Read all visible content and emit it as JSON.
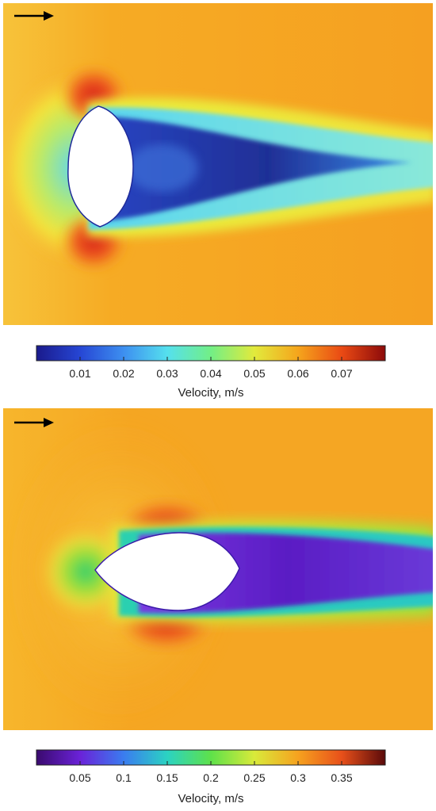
{
  "panels": [
    {
      "id": "low-speed",
      "colorbar": {
        "label": "Velocity, m/s",
        "min": 0.0,
        "max": 0.08,
        "ticks": [
          "0.01",
          "0.02",
          "0.03",
          "0.04",
          "0.05",
          "0.06",
          "0.07"
        ],
        "tick_values": [
          0.01,
          0.02,
          0.03,
          0.04,
          0.05,
          0.06,
          0.07
        ],
        "colormap": [
          "#1a1a8c",
          "#2646d4",
          "#3d8ff0",
          "#55e0ee",
          "#72ef86",
          "#e2ea3c",
          "#f5a51c",
          "#ea4a14",
          "#8c0a0a"
        ]
      },
      "field_colors": {
        "background": "#f5a021",
        "wake": "#2d3ea8",
        "wake_edge": "#63d9ee",
        "shear": "#f2e83a",
        "stagnation": "#d8261a"
      },
      "flow_arrow": "flow-direction-arrow"
    },
    {
      "id": "high-speed",
      "colorbar": {
        "label": "Velocity, m/s",
        "min": 0.0,
        "max": 0.4,
        "ticks": [
          "0.05",
          "0.1",
          "0.15",
          "0.2",
          "0.25",
          "0.3",
          "0.35"
        ],
        "tick_values": [
          0.05,
          0.1,
          0.15,
          0.2,
          0.25,
          0.3,
          0.35
        ],
        "colormap": [
          "#3a0a6e",
          "#6a22d8",
          "#3a7cf0",
          "#2bd3c2",
          "#5ee14a",
          "#d9ea3a",
          "#f6a21f",
          "#e8501a",
          "#5a0a0a"
        ]
      },
      "field_colors": {
        "background": "#f5a623",
        "wake": "#6a28d0",
        "wake_edge": "#27cfb4",
        "shear": "#eaea3a",
        "stagnation": "#e6481a"
      },
      "flow_arrow": "flow-direction-arrow"
    }
  ]
}
